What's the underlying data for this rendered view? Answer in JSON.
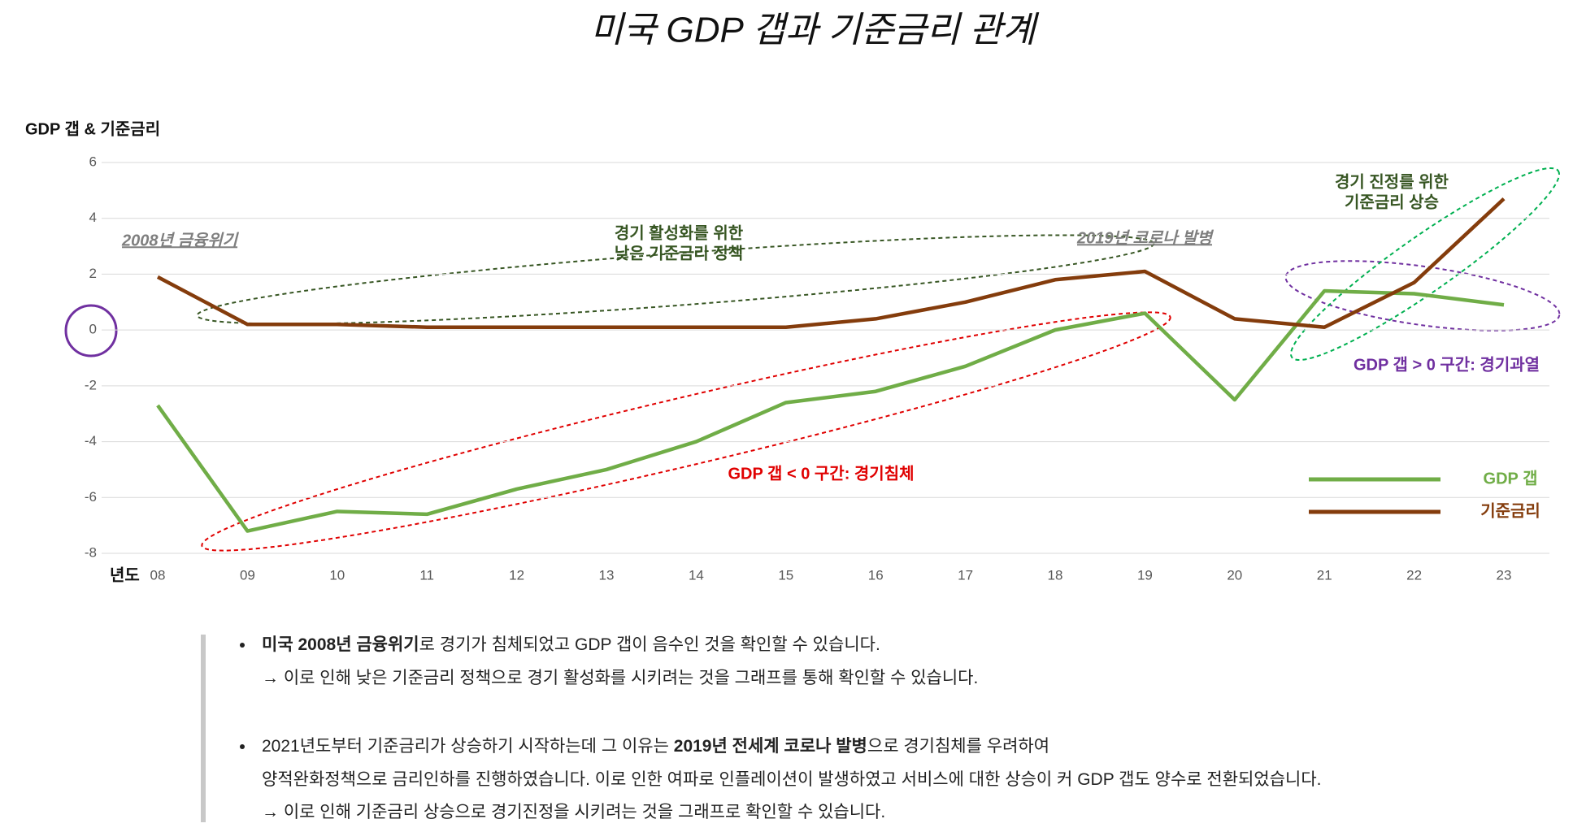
{
  "chart_data": {
    "type": "line",
    "title": "미국 GDP 갭과 기준금리 관계",
    "y_label": "GDP 갭 & 기준금리",
    "x_label": "년도",
    "categories": [
      "08",
      "09",
      "10",
      "11",
      "12",
      "13",
      "14",
      "15",
      "16",
      "17",
      "18",
      "19",
      "20",
      "21",
      "22",
      "23"
    ],
    "series": [
      {
        "name": "GDP 갭",
        "color": "#70ad47",
        "values": [
          -2.7,
          -7.2,
          -6.5,
          -6.6,
          -5.7,
          -5.0,
          -4.0,
          -2.6,
          -2.2,
          -1.3,
          0.0,
          0.6,
          -2.5,
          1.4,
          1.3,
          0.9
        ]
      },
      {
        "name": "기준금리",
        "color": "#843c0c",
        "values": [
          1.9,
          0.2,
          0.2,
          0.1,
          0.1,
          0.1,
          0.1,
          0.1,
          0.4,
          1.0,
          1.8,
          2.1,
          0.4,
          0.1,
          1.7,
          4.7
        ]
      }
    ],
    "ylim": [
      -8,
      6
    ],
    "yticks": [
      6,
      4,
      2,
      0,
      -2,
      -4,
      -6,
      -8
    ],
    "grid": true,
    "annotations": [
      {
        "lines": [
          "2008년 금융위기"
        ]
      },
      {
        "lines": [
          "2019년 코로나 발병"
        ]
      },
      {
        "lines": [
          "경기 활성화를 위한",
          "낮은 기준금리 정책"
        ]
      },
      {
        "lines": [
          "GDP 갭 < 0 구간: 경기침체"
        ]
      },
      {
        "lines": [
          "경기 진정를 위한",
          "기준금리 상승"
        ]
      },
      {
        "lines": [
          "GDP 갭 > 0 구간: 경기과열"
        ]
      }
    ]
  },
  "notes": [
    {
      "lines": [
        [
          {
            "text": "미국 2008년 금융위기",
            "bold": true
          },
          {
            "text": "로 경기가 침체되었고 GDP 갭이 음수인 것을 확인할 수 있습니다."
          }
        ],
        [
          {
            "text": "→ 이로 인해 낮은 기준금리 정책으로 경기 활성화를 시키려는 것을 그래프를 통해 확인할 수 있습니다."
          }
        ]
      ]
    },
    {
      "lines": [
        [
          {
            "text": "2021년도부터 기준금리가 상승하기 시작하는데 그 이유는 "
          },
          {
            "text": "2019년 전세계 코로나 발병",
            "bold": true
          },
          {
            "text": "으로 경기침체를 우려하여"
          }
        ],
        [
          {
            "text": "양적완화정책으로 금리인하를 진행하였습니다. 이로 인한 여파로 인플레이션이 발생하였고 서비스에 대한 상승이 커 GDP 갭도 양수로 전환되었습니다."
          }
        ],
        [
          {
            "text": "→ 이로 인해 기준금리 상승으로 경기진정을 시키려는 것을 그래프로 확인할 수 있습니다."
          }
        ]
      ]
    }
  ]
}
